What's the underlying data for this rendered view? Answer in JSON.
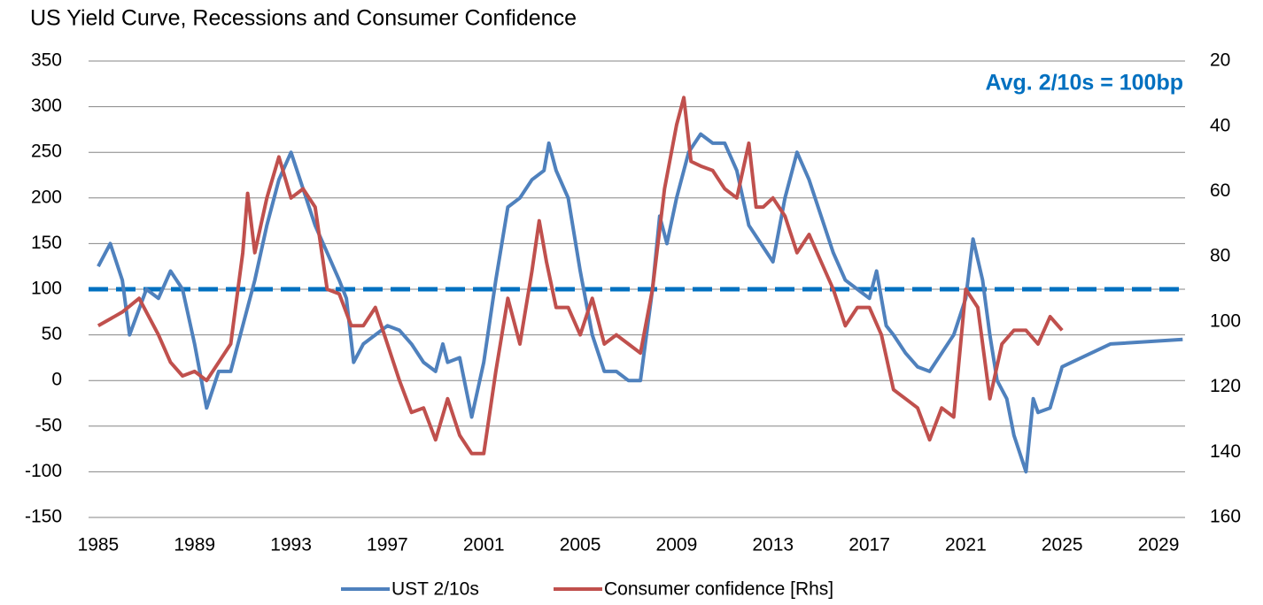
{
  "chart_data": {
    "type": "line",
    "title": "US Yield Curve, Recessions and Consumer Confidence",
    "xlim": [
      1984.6,
      2030.1
    ],
    "xticks": [
      1985,
      1989,
      1993,
      1997,
      2001,
      2005,
      2009,
      2013,
      2017,
      2021,
      2025,
      2029
    ],
    "ylim": [
      -150,
      350
    ],
    "yticks": [
      -150,
      -100,
      -50,
      0,
      50,
      100,
      150,
      200,
      250,
      300,
      350
    ],
    "y2lim": [
      160,
      20
    ],
    "y2ticks": [
      160,
      140,
      120,
      100,
      80,
      60,
      40,
      20
    ],
    "grid": true,
    "legend": "bottom",
    "reference_line": {
      "value": 100,
      "color": "#0070c0",
      "label": "Avg. 2/10s = 100bp"
    },
    "series": [
      {
        "name": "UST 2/10s",
        "color": "#4f81bd",
        "x": [
          1985,
          1985.5,
          1986,
          1986.3,
          1987,
          1987.5,
          1988,
          1988.5,
          1989,
          1989.5,
          1990,
          1990.5,
          1991,
          1991.5,
          1992,
          1992.5,
          1993,
          1993.5,
          1994,
          1994.5,
          1995,
          1995.3,
          1995.6,
          1996,
          1996.5,
          1997,
          1997.5,
          1998,
          1998.5,
          1999,
          1999.3,
          1999.5,
          2000,
          2000.5,
          2001,
          2001.5,
          2002,
          2002.5,
          2003,
          2003.5,
          2003.7,
          2004,
          2004.5,
          2005,
          2005.5,
          2006,
          2006.5,
          2007,
          2007.5,
          2008,
          2008.3,
          2008.6,
          2009,
          2009.5,
          2010,
          2010.5,
          2011,
          2011.5,
          2012,
          2012.5,
          2013,
          2013.5,
          2014,
          2014.5,
          2015,
          2015.5,
          2016,
          2016.5,
          2017,
          2017.3,
          2017.7,
          2018,
          2018.5,
          2019,
          2019.5,
          2020,
          2020.5,
          2021,
          2021.3,
          2021.7,
          2022,
          2022.3,
          2022.7,
          2023,
          2023.5,
          2023.8,
          2024,
          2024.5,
          2025,
          2027,
          2030
        ],
        "values": [
          125,
          150,
          110,
          50,
          100,
          90,
          120,
          100,
          40,
          -30,
          10,
          10,
          60,
          110,
          170,
          220,
          250,
          210,
          170,
          140,
          110,
          90,
          20,
          40,
          50,
          60,
          55,
          40,
          20,
          10,
          40,
          20,
          25,
          -40,
          20,
          110,
          190,
          200,
          220,
          230,
          260,
          230,
          200,
          120,
          50,
          10,
          10,
          0,
          0,
          100,
          180,
          150,
          200,
          250,
          270,
          260,
          260,
          230,
          170,
          150,
          130,
          200,
          250,
          220,
          180,
          140,
          110,
          100,
          90,
          120,
          60,
          50,
          30,
          15,
          10,
          30,
          50,
          90,
          155,
          110,
          50,
          0,
          -20,
          -60,
          -100,
          -20,
          -35,
          -30,
          15,
          40,
          45
        ]
      },
      {
        "name": "Consumer confidence [Rhs]",
        "color": "#c0504d",
        "axis": "y2",
        "x": [
          1985,
          1986,
          1986.7,
          1987.5,
          1988,
          1988.5,
          1989,
          1989.5,
          1990,
          1990.5,
          1991,
          1991.2,
          1991.5,
          1992,
          1992.5,
          1993,
          1993.5,
          1994,
          1994.5,
          1995,
          1995.5,
          1996,
          1996.5,
          1997,
          1997.5,
          1998,
          1998.5,
          1999,
          1999.5,
          2000,
          2000.5,
          2001,
          2001.5,
          2002,
          2002.5,
          2003,
          2003.3,
          2003.6,
          2004,
          2004.5,
          2005,
          2005.5,
          2006,
          2006.5,
          2007,
          2007.5,
          2008,
          2008.5,
          2009,
          2009.3,
          2009.6,
          2010,
          2010.5,
          2011,
          2011.5,
          2012,
          2012.3,
          2012.6,
          2013,
          2013.5,
          2014,
          2014.5,
          2015,
          2015.5,
          2016,
          2016.5,
          2017,
          2017.5,
          2018,
          2018.5,
          2019,
          2019.5,
          2020,
          2020.5,
          2021,
          2021.5,
          2022,
          2022.5,
          2023,
          2023.5,
          2024,
          2024.5,
          2025
        ],
        "values": [
          101.2,
          97,
          92.8,
          104,
          112.4,
          116.6,
          115.2,
          118,
          112.4,
          106.8,
          78.8,
          60.6,
          78.8,
          62,
          49.4,
          62,
          59.2,
          64.8,
          90,
          91.4,
          101.2,
          101.2,
          95.6,
          106.8,
          118,
          127.8,
          126.4,
          136.2,
          123.6,
          134.8,
          140.4,
          140.4,
          115.2,
          92.8,
          106.8,
          84.4,
          69,
          81.6,
          95.6,
          95.6,
          104,
          92.8,
          106.8,
          104,
          106.8,
          109.6,
          90,
          59.2,
          39.6,
          31.2,
          50.8,
          52.2,
          53.6,
          59.2,
          62,
          45.2,
          64.8,
          64.8,
          62,
          67.6,
          78.8,
          73.2,
          81.6,
          90,
          101.2,
          95.6,
          95.6,
          104,
          120.8,
          123.6,
          126.4,
          136.2,
          126.4,
          129.2,
          90,
          95.6,
          123.6,
          106.8,
          102.6,
          102.6,
          106.8,
          98.4,
          102.6
        ]
      }
    ]
  }
}
